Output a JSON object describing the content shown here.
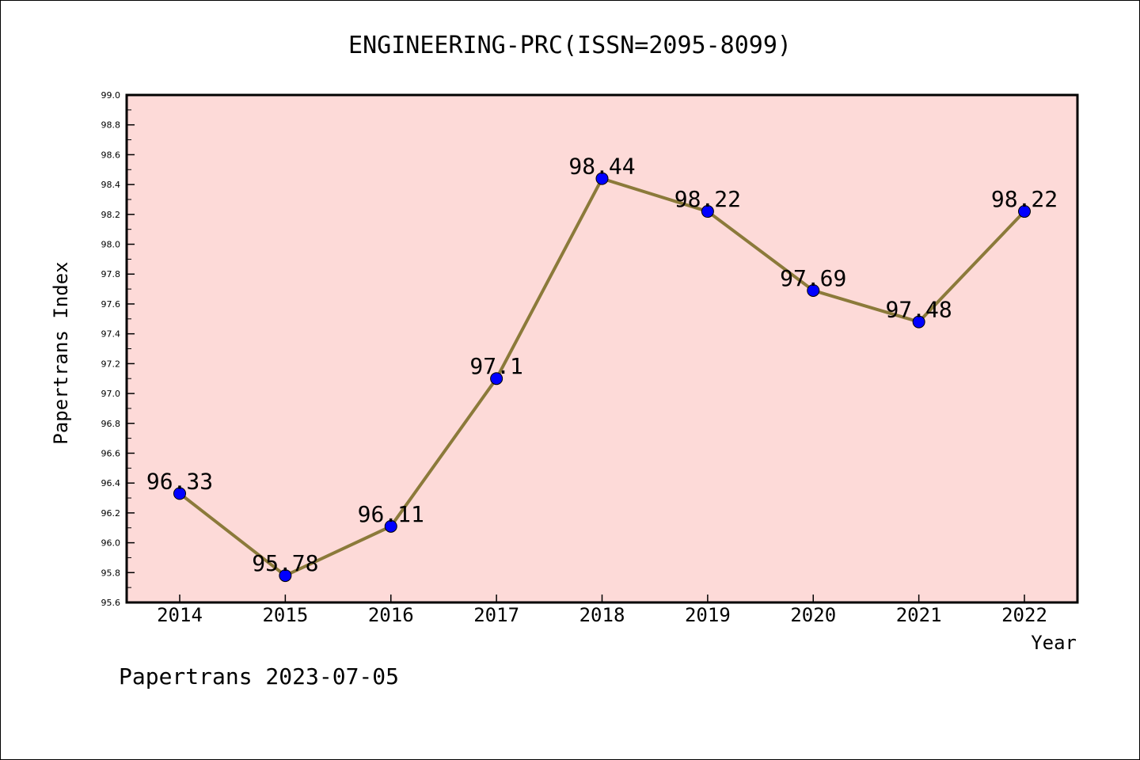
{
  "chart_data": {
    "type": "line",
    "title": "ENGINEERING-PRC(ISSN=2095-8099)",
    "xlabel": "Year",
    "ylabel": "Papertrans Index",
    "categories": [
      "2014",
      "2015",
      "2016",
      "2017",
      "2018",
      "2019",
      "2020",
      "2021",
      "2022"
    ],
    "values": [
      96.33,
      95.78,
      96.11,
      97.1,
      98.44,
      98.22,
      97.69,
      97.48,
      98.22
    ],
    "data_labels": [
      "96.33",
      "95.78",
      "96.11",
      "97.1",
      "98.44",
      "98.22",
      "97.69",
      "97.48",
      "98.22"
    ],
    "ylim": [
      95.6,
      99.0
    ],
    "y_ticks": [
      "95.6",
      "95.8",
      "96.0",
      "96.2",
      "96.4",
      "96.6",
      "96.8",
      "97.0",
      "97.2",
      "97.4",
      "97.6",
      "97.8",
      "98.0",
      "98.2",
      "98.4",
      "98.6",
      "98.8",
      "99.0"
    ],
    "colors": {
      "plot_background": "#fddad8",
      "line": "#8b7a3a",
      "marker": "#0000ff"
    },
    "grid": false,
    "legend": "none"
  },
  "footer": {
    "credit": "Papertrans 2023-07-05"
  }
}
